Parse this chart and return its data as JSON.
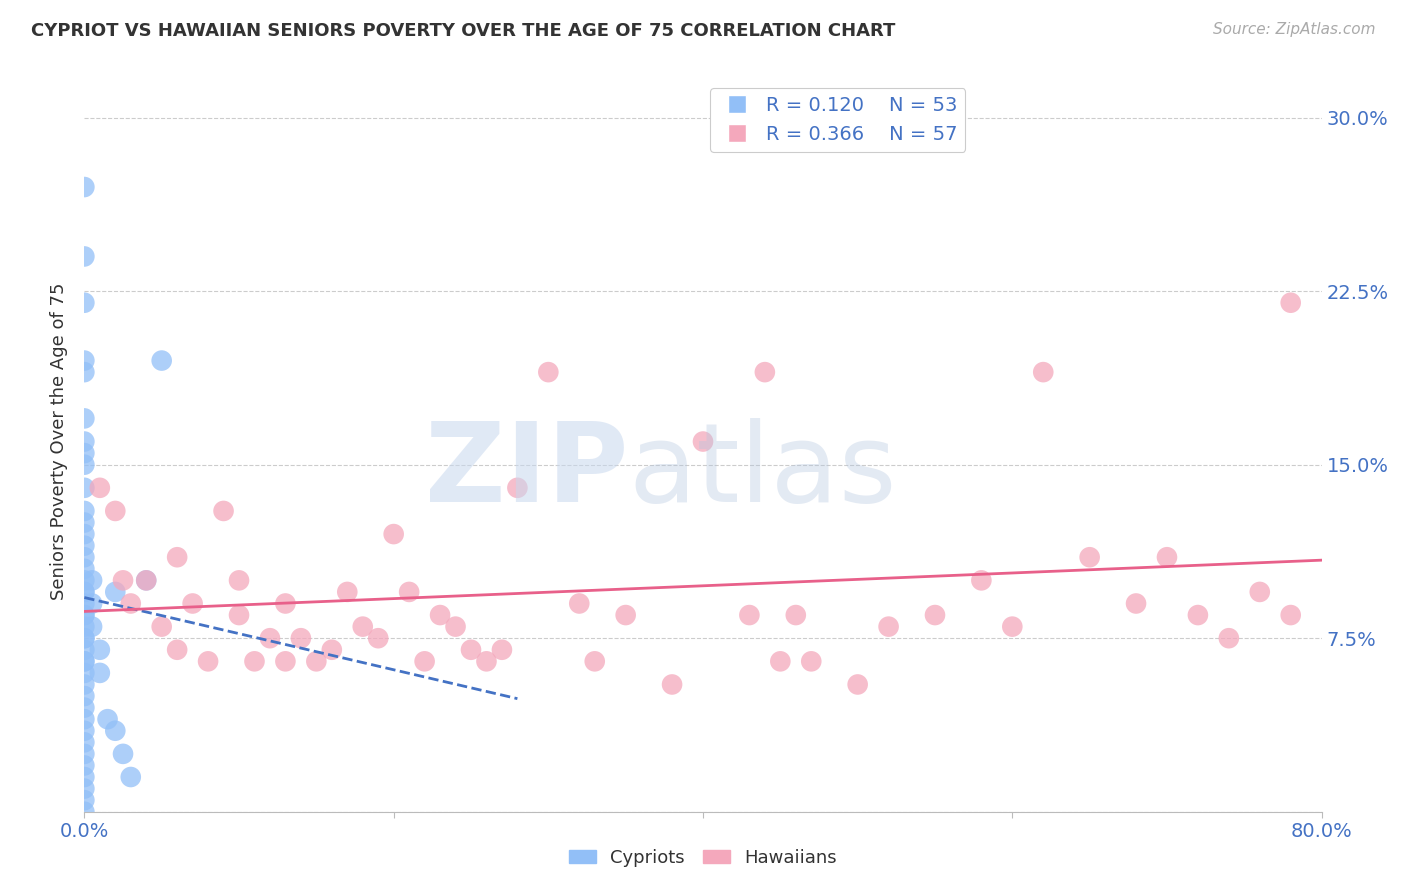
{
  "title": "CYPRIOT VS HAWAIIAN SENIORS POVERTY OVER THE AGE OF 75 CORRELATION CHART",
  "source": "Source: ZipAtlas.com",
  "ylabel": "Seniors Poverty Over the Age of 75",
  "xlim": [
    0.0,
    0.8
  ],
  "ylim": [
    0.0,
    0.32
  ],
  "yticks": [
    0.0,
    0.075,
    0.15,
    0.225,
    0.3
  ],
  "ytick_labels": [
    "",
    "7.5%",
    "15.0%",
    "22.5%",
    "30.0%"
  ],
  "xticks": [
    0.0,
    0.2,
    0.4,
    0.6,
    0.8
  ],
  "xtick_labels": [
    "0.0%",
    "",
    "",
    "",
    "80.0%"
  ],
  "cypriot_color": "#92bff7",
  "hawaiian_color": "#f4a8bc",
  "cypriot_R": 0.12,
  "cypriot_N": 53,
  "hawaiian_R": 0.366,
  "hawaiian_N": 57,
  "trend_line_color_cypriot": "#4472c4",
  "trend_line_color_hawaiian": "#e8608a",
  "cypriot_x": [
    0.0,
    0.0,
    0.0,
    0.0,
    0.0,
    0.0,
    0.0,
    0.0,
    0.0,
    0.0,
    0.0,
    0.0,
    0.0,
    0.0,
    0.0,
    0.0,
    0.0,
    0.0,
    0.0,
    0.0,
    0.0,
    0.0,
    0.0,
    0.0,
    0.0,
    0.0,
    0.0,
    0.0,
    0.0,
    0.0,
    0.0,
    0.0,
    0.0,
    0.0,
    0.0,
    0.0,
    0.0,
    0.0,
    0.0,
    0.0,
    0.0,
    0.005,
    0.005,
    0.005,
    0.01,
    0.01,
    0.015,
    0.02,
    0.02,
    0.025,
    0.03,
    0.04,
    0.05
  ],
  "cypriot_y": [
    0.0,
    0.005,
    0.01,
    0.015,
    0.02,
    0.025,
    0.03,
    0.035,
    0.04,
    0.045,
    0.05,
    0.055,
    0.06,
    0.065,
    0.07,
    0.075,
    0.08,
    0.085,
    0.09,
    0.095,
    0.1,
    0.105,
    0.11,
    0.115,
    0.12,
    0.125,
    0.13,
    0.14,
    0.15,
    0.155,
    0.16,
    0.17,
    0.19,
    0.195,
    0.22,
    0.24,
    0.27,
    0.095,
    0.085,
    0.075,
    0.065,
    0.1,
    0.09,
    0.08,
    0.07,
    0.06,
    0.04,
    0.035,
    0.095,
    0.025,
    0.015,
    0.1,
    0.195
  ],
  "hawaiian_x": [
    0.01,
    0.02,
    0.025,
    0.03,
    0.04,
    0.05,
    0.06,
    0.06,
    0.07,
    0.08,
    0.09,
    0.1,
    0.1,
    0.11,
    0.12,
    0.13,
    0.13,
    0.14,
    0.15,
    0.16,
    0.17,
    0.18,
    0.19,
    0.2,
    0.21,
    0.22,
    0.23,
    0.24,
    0.25,
    0.26,
    0.27,
    0.28,
    0.3,
    0.32,
    0.33,
    0.35,
    0.38,
    0.4,
    0.43,
    0.44,
    0.45,
    0.46,
    0.47,
    0.5,
    0.52,
    0.55,
    0.58,
    0.6,
    0.62,
    0.65,
    0.68,
    0.7,
    0.72,
    0.74,
    0.76,
    0.78,
    0.78
  ],
  "hawaiian_y": [
    0.14,
    0.13,
    0.1,
    0.09,
    0.1,
    0.08,
    0.07,
    0.11,
    0.09,
    0.065,
    0.13,
    0.085,
    0.1,
    0.065,
    0.075,
    0.09,
    0.065,
    0.075,
    0.065,
    0.07,
    0.095,
    0.08,
    0.075,
    0.12,
    0.095,
    0.065,
    0.085,
    0.08,
    0.07,
    0.065,
    0.07,
    0.14,
    0.19,
    0.09,
    0.065,
    0.085,
    0.055,
    0.16,
    0.085,
    0.19,
    0.065,
    0.085,
    0.065,
    0.055,
    0.08,
    0.085,
    0.1,
    0.08,
    0.19,
    0.11,
    0.09,
    0.11,
    0.085,
    0.075,
    0.095,
    0.22,
    0.085
  ]
}
